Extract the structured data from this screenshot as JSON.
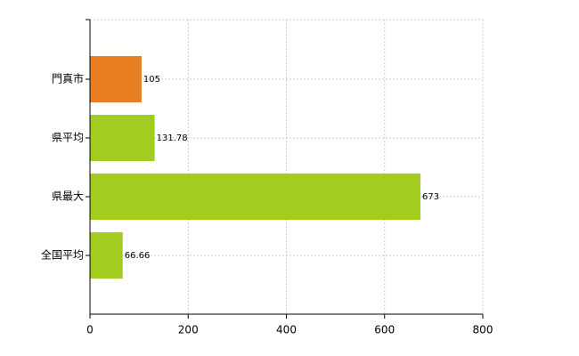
{
  "chart_data": {
    "type": "hbar",
    "categories": [
      "門真市",
      "県平均",
      "県最大",
      "全国平均"
    ],
    "values": [
      105,
      131.78,
      673,
      66.66
    ],
    "colors": [
      "#e87d22",
      "#a2cc20",
      "#a2cc20",
      "#a2cc20"
    ],
    "xlim": [
      0,
      800
    ],
    "xticks": [
      0,
      200,
      400,
      600,
      800
    ],
    "grid": true
  }
}
